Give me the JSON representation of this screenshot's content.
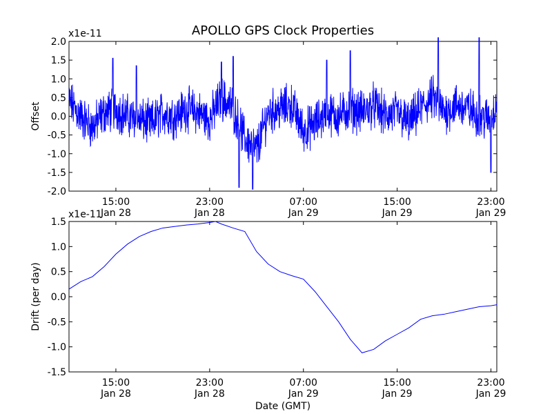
{
  "chart_data": [
    {
      "type": "line",
      "title": "APOLLO GPS Clock Properties",
      "ylabel": "Offset",
      "xlabel": "",
      "y_scale_label": "x1e-11",
      "ylim": [
        -2.0,
        2.0
      ],
      "yticks": [
        "-2.0",
        "-1.5",
        "-1.0",
        "-0.5",
        "0.0",
        "0.5",
        "1.0",
        "1.5",
        "2.0"
      ],
      "xlim": [
        "Jan 28 11:00",
        "Jan 29 23:30"
      ],
      "xticks": [
        {
          "time": "15:00",
          "date": "Jan 28"
        },
        {
          "time": "23:00",
          "date": "Jan 28"
        },
        {
          "time": "07:00",
          "date": "Jan 29"
        },
        {
          "time": "15:00",
          "date": "Jan 29"
        },
        {
          "time": "23:00",
          "date": "Jan 29"
        }
      ],
      "series_color": "#0000ff",
      "grid": false,
      "series": [
        {
          "x": [
            "Jan 28 11:00",
            "Jan 28 12:00",
            "Jan 28 13:00",
            "Jan 28 14:00",
            "Jan 28 15:00",
            "Jan 28 16:00",
            "Jan 28 17:00",
            "Jan 28 18:00",
            "Jan 28 19:00",
            "Jan 28 20:00",
            "Jan 28 21:00",
            "Jan 28 22:00",
            "Jan 28 23:00",
            "Jan 29 00:00",
            "Jan 29 01:00",
            "Jan 29 02:00",
            "Jan 29 03:00",
            "Jan 29 04:00",
            "Jan 29 05:00",
            "Jan 29 06:00",
            "Jan 29 07:00",
            "Jan 29 08:00",
            "Jan 29 09:00",
            "Jan 29 10:00",
            "Jan 29 11:00",
            "Jan 29 12:00",
            "Jan 29 13:00",
            "Jan 29 14:00",
            "Jan 29 15:00",
            "Jan 29 16:00",
            "Jan 29 17:00",
            "Jan 29 18:00",
            "Jan 29 19:00",
            "Jan 29 20:00",
            "Jan 29 21:00",
            "Jan 29 22:00",
            "Jan 29 23:00",
            "Jan 29 23:30"
          ],
          "y": [
            0.4,
            0.0,
            -0.3,
            0.1,
            0.2,
            0.0,
            -0.1,
            -0.2,
            0.1,
            0.0,
            0.2,
            0.1,
            -0.1,
            0.5,
            0.2,
            -0.6,
            -0.9,
            0.1,
            0.2,
            0.3,
            -0.4,
            -0.2,
            0.1,
            0.0,
            0.2,
            0.1,
            0.3,
            0.0,
            0.1,
            -0.2,
            0.2,
            0.5,
            0.1,
            0.3,
            0.2,
            0.0,
            -0.1,
            0.4
          ]
        }
      ],
      "spikes": [
        {
          "x": "Jan 28 14:45",
          "y": 1.55
        },
        {
          "x": "Jan 28 16:45",
          "y": 1.35
        },
        {
          "x": "Jan 29 00:00",
          "y": 1.45
        },
        {
          "x": "Jan 29 01:00",
          "y": 1.6
        },
        {
          "x": "Jan 29 01:30",
          "y": -1.9
        },
        {
          "x": "Jan 29 02:40",
          "y": -1.95
        },
        {
          "x": "Jan 29 09:00",
          "y": 1.5
        },
        {
          "x": "Jan 29 11:00",
          "y": 1.75
        },
        {
          "x": "Jan 29 18:30",
          "y": 2.1
        },
        {
          "x": "Jan 29 22:00",
          "y": 2.1
        },
        {
          "x": "Jan 29 23:00",
          "y": -1.5
        }
      ]
    },
    {
      "type": "line",
      "title": "",
      "ylabel": "Drift (per day)",
      "xlabel": "Date (GMT)",
      "y_scale_label": "x1e-11",
      "ylim": [
        -1.5,
        1.5
      ],
      "yticks": [
        "-1.5",
        "-1.0",
        "-0.5",
        "0.0",
        "0.5",
        "1.0",
        "1.5"
      ],
      "xlim": [
        "Jan 28 11:00",
        "Jan 29 23:30"
      ],
      "xticks": [
        {
          "time": "15:00",
          "date": "Jan 28"
        },
        {
          "time": "23:00",
          "date": "Jan 28"
        },
        {
          "time": "07:00",
          "date": "Jan 29"
        },
        {
          "time": "15:00",
          "date": "Jan 29"
        },
        {
          "time": "23:00",
          "date": "Jan 29"
        }
      ],
      "series_color": "#0000ff",
      "grid": false,
      "series": [
        {
          "x": [
            "Jan 28 11:00",
            "Jan 28 12:00",
            "Jan 28 13:00",
            "Jan 28 14:00",
            "Jan 28 15:00",
            "Jan 28 16:00",
            "Jan 28 17:00",
            "Jan 28 18:00",
            "Jan 28 19:00",
            "Jan 28 20:00",
            "Jan 28 21:00",
            "Jan 28 22:00",
            "Jan 28 23:00",
            "Jan 28 23:30",
            "Jan 29 00:00",
            "Jan 29 01:00",
            "Jan 29 02:00",
            "Jan 29 03:00",
            "Jan 29 04:00",
            "Jan 29 05:00",
            "Jan 29 06:00",
            "Jan 29 07:00",
            "Jan 29 08:00",
            "Jan 29 09:00",
            "Jan 29 10:00",
            "Jan 29 11:00",
            "Jan 29 12:00",
            "Jan 29 13:00",
            "Jan 29 14:00",
            "Jan 29 15:00",
            "Jan 29 16:00",
            "Jan 29 17:00",
            "Jan 29 18:00",
            "Jan 29 19:00",
            "Jan 29 20:00",
            "Jan 29 21:00",
            "Jan 29 22:00",
            "Jan 29 23:00",
            "Jan 29 23:30"
          ],
          "y": [
            0.15,
            0.3,
            0.4,
            0.6,
            0.85,
            1.05,
            1.2,
            1.3,
            1.37,
            1.4,
            1.43,
            1.45,
            1.48,
            1.5,
            1.45,
            1.37,
            1.3,
            0.9,
            0.65,
            0.5,
            0.42,
            0.35,
            0.1,
            -0.2,
            -0.5,
            -0.85,
            -1.12,
            -1.05,
            -0.88,
            -0.75,
            -0.62,
            -0.45,
            -0.38,
            -0.35,
            -0.3,
            -0.25,
            -0.2,
            -0.18,
            -0.16
          ]
        }
      ]
    }
  ]
}
